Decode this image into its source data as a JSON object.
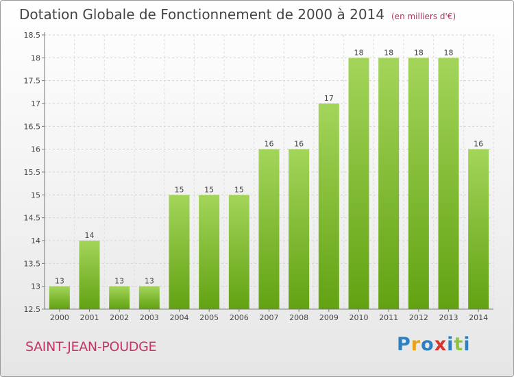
{
  "chart_data": {
    "type": "bar",
    "title": "Dotation Globale de Fonctionnement de 2000 à 2014",
    "subtitle": "(en milliers d'€)",
    "categories": [
      "2000",
      "2001",
      "2002",
      "2003",
      "2004",
      "2005",
      "2006",
      "2007",
      "2008",
      "2009",
      "2010",
      "2011",
      "2012",
      "2013",
      "2014"
    ],
    "values": [
      13,
      14,
      13,
      13,
      15,
      15,
      15,
      16,
      16,
      17,
      18,
      18,
      18,
      18,
      16
    ],
    "yticks": [
      "12.5",
      "13",
      "13.5",
      "14",
      "14.5",
      "15",
      "15.5",
      "16",
      "16.5",
      "17",
      "17.5",
      "18",
      "18.5"
    ],
    "ylim": [
      12.5,
      18.5
    ],
    "xlabel": "",
    "ylabel": "",
    "grid": true,
    "bar_color": "#8cc63f"
  },
  "footer": {
    "commune": "SAINT-JEAN-POUDGE",
    "logo_text": "Proxiti"
  }
}
